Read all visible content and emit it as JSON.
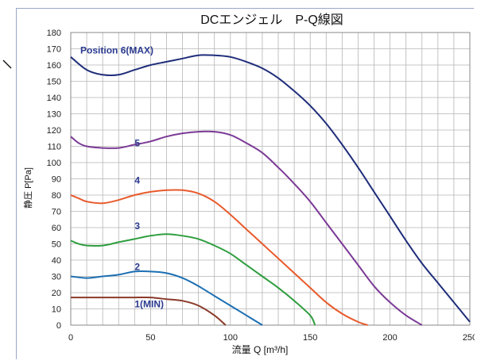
{
  "chart_data": {
    "type": "line",
    "title": "DCエンジェル　P-Q線図",
    "xlabel": "流量 Q [m³/h]",
    "ylabel": "静圧 P[Pa]",
    "xlim": [
      0,
      250
    ],
    "ylim": [
      0,
      180
    ],
    "x_ticks": [
      0,
      50,
      100,
      150,
      200,
      250
    ],
    "y_ticks": [
      0,
      10,
      20,
      30,
      40,
      50,
      60,
      70,
      80,
      90,
      100,
      110,
      120,
      130,
      140,
      150,
      160,
      170,
      180
    ],
    "x_minor_step": 10,
    "grid": true,
    "series": [
      {
        "name": "Position 6(MAX)",
        "color": "#1f2d7a",
        "label_at": [
          6,
          167
        ],
        "x": [
          0,
          10,
          20,
          30,
          40,
          50,
          60,
          70,
          80,
          90,
          100,
          110,
          120,
          130,
          140,
          150,
          160,
          170,
          180,
          190,
          200,
          210,
          220,
          230,
          240,
          250
        ],
        "y": [
          165,
          157,
          154,
          154,
          157,
          160,
          162,
          164,
          166,
          166,
          165,
          162,
          158,
          152,
          144,
          135,
          124,
          111,
          97,
          82,
          67,
          52,
          38,
          26,
          14,
          2
        ]
      },
      {
        "name": "5",
        "color": "#7b3a96",
        "label_at": [
          100,
          110
        ],
        "x": [
          0,
          5,
          10,
          20,
          30,
          40,
          50,
          60,
          70,
          80,
          90,
          100,
          110,
          120,
          130,
          140,
          150,
          160,
          170,
          180,
          190,
          200,
          210,
          220
        ],
        "y": [
          116,
          112,
          110,
          109,
          109,
          111,
          113,
          116,
          118,
          119,
          119,
          117,
          112,
          106,
          97,
          87,
          76,
          63,
          50,
          37,
          24,
          14,
          6,
          0
        ]
      },
      {
        "name": "4",
        "color": "#e85a2c",
        "label_at": [
          100,
          87
        ],
        "x": [
          0,
          5,
          10,
          20,
          30,
          40,
          50,
          60,
          70,
          80,
          90,
          100,
          110,
          120,
          130,
          140,
          150,
          160,
          170,
          180,
          186
        ],
        "y": [
          80,
          78,
          76,
          75,
          77,
          80,
          82,
          83,
          83,
          81,
          76,
          68,
          59,
          50,
          41,
          32,
          23,
          14,
          7,
          2,
          0
        ]
      },
      {
        "name": "3",
        "color": "#2e9e3e",
        "label_at": [
          100,
          59
        ],
        "x": [
          0,
          5,
          10,
          20,
          30,
          40,
          50,
          60,
          70,
          80,
          90,
          100,
          110,
          120,
          130,
          140,
          150,
          153
        ],
        "y": [
          52,
          50,
          49,
          49,
          51,
          53,
          55,
          56,
          55,
          53,
          49,
          44,
          37,
          30,
          23,
          15,
          6,
          0
        ]
      },
      {
        "name": "2",
        "color": "#1c6fb3",
        "label_at": [
          100,
          34
        ],
        "x": [
          0,
          10,
          20,
          30,
          40,
          50,
          60,
          70,
          80,
          90,
          100,
          110,
          120
        ],
        "y": [
          30,
          29,
          30,
          31,
          33,
          33,
          32,
          29,
          24,
          18,
          12,
          6,
          0
        ]
      },
      {
        "name": "1(MIN)",
        "color": "#8b3a2a",
        "label_at": [
          100,
          11
        ],
        "x": [
          0,
          10,
          20,
          30,
          40,
          50,
          60,
          70,
          80,
          90,
          97
        ],
        "y": [
          17,
          17,
          17,
          17,
          17,
          17,
          16,
          15,
          12,
          6,
          0
        ]
      }
    ]
  }
}
